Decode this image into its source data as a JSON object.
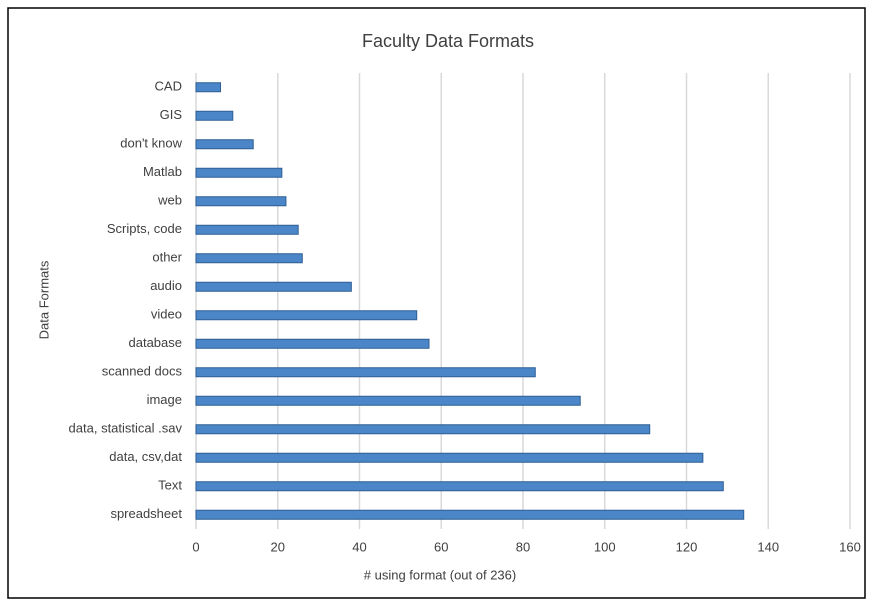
{
  "chart_data": {
    "type": "bar",
    "orientation": "horizontal",
    "title": "Faculty Data Formats",
    "x_label": "# using format (out of 236)",
    "y_label": "Data Formats",
    "categories": [
      "CAD",
      "GIS",
      "don't know",
      "Matlab",
      "web",
      "Scripts, code",
      "other",
      "audio",
      "video",
      "database",
      "scanned docs",
      "image",
      "data, statistical .sav",
      "data, csv,dat",
      "Text",
      "spreadsheet"
    ],
    "values": [
      6,
      9,
      14,
      21,
      22,
      25,
      26,
      38,
      54,
      57,
      83,
      94,
      111,
      124,
      129,
      134
    ],
    "color": "#4a86c8",
    "xlim": [
      0,
      160
    ],
    "xticks": [
      0,
      20,
      40,
      60,
      80,
      100,
      120,
      140,
      160
    ],
    "grid": true
  }
}
